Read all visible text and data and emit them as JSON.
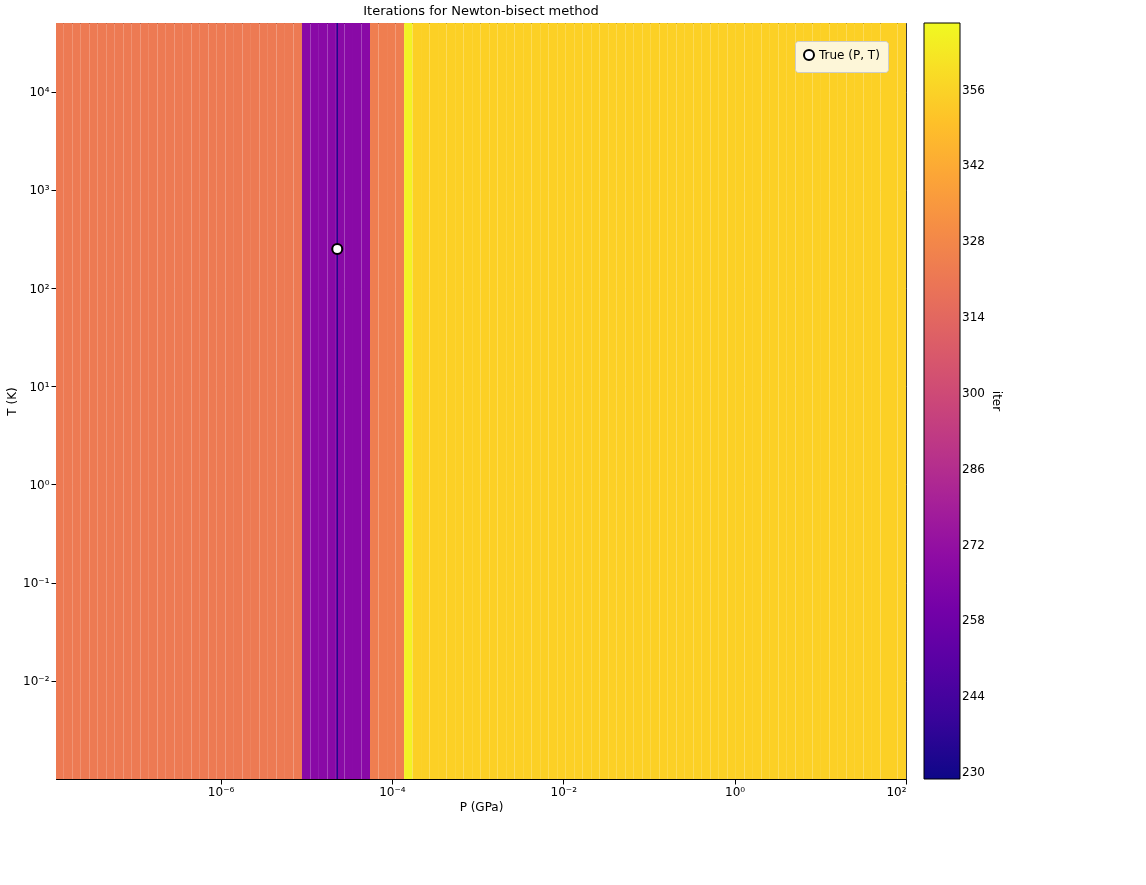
{
  "chart_data": {
    "type": "heatmap",
    "title": "Iterations for Newton-bisect method",
    "xlabel": "P (GPa)",
    "ylabel": "T (K)",
    "clabel": "iter",
    "x": [
      1.32e-08,
      1.66e-08,
      2.08e-08,
      2.62e-08,
      3.29e-08,
      4.13e-08,
      5.19e-08,
      6.53e-08,
      8.21e-08,
      1.03e-07,
      1.3e-07,
      1.63e-07,
      2.05e-07,
      2.57e-07,
      3.24e-07,
      4.07e-07,
      5.11e-07,
      6.42e-07,
      8.08e-07,
      1.01e-06,
      1.28e-06,
      1.6e-06,
      2.02e-06,
      2.53e-06,
      3.18e-06,
      4e-06,
      5.03e-06,
      6.32e-06,
      7.95e-06,
      9.99e-06,
      1.25e-05,
      1.58e-05,
      1.98e-05,
      2.49e-05,
      3.13e-05,
      3.94e-05,
      4.95e-05,
      6.22e-05,
      7.82e-05,
      9.83e-05,
      0.000124,
      0.000155,
      0.000195,
      0.000245,
      0.000308,
      0.000387,
      0.000487,
      0.000612,
      0.000769,
      0.000967,
      0.00122,
      0.00153,
      0.00192,
      0.00241,
      0.00303,
      0.00381,
      0.00479,
      0.00602,
      0.00757,
      0.00951,
      0.012,
      0.015,
      0.0189,
      0.0237,
      0.0298,
      0.0375,
      0.0472,
      0.0593,
      0.0745,
      0.0936,
      0.118,
      0.148,
      0.186,
      0.234,
      0.294,
      0.369,
      0.464,
      0.583,
      0.733,
      0.921,
      1.16,
      1.46,
      1.83,
      2.3,
      2.89,
      3.63,
      4.56,
      5.74,
      7.21,
      9.07,
      11.4,
      14.3,
      18.0,
      22.6,
      28.4,
      35.7,
      44.9,
      56.5,
      71.0,
      89.2
    ],
    "cells": [
      [
        322,
        322,
        322,
        322,
        322,
        322,
        322,
        322,
        322,
        322,
        322,
        322,
        322,
        322,
        322,
        322,
        322,
        322,
        322,
        322,
        322,
        322,
        322,
        322,
        322,
        322,
        322,
        322,
        322,
        268,
        268,
        268,
        268,
        268,
        268,
        268,
        268,
        324,
        324,
        324,
        324,
        366,
        355,
        355,
        355,
        355,
        355,
        355,
        355,
        355,
        355,
        355,
        355,
        355,
        355,
        355,
        355,
        355,
        355,
        355,
        355,
        355,
        355,
        355,
        355,
        355,
        355,
        355,
        355,
        355,
        355,
        355,
        355,
        355,
        355,
        355,
        355,
        355,
        355,
        355,
        355,
        355,
        355,
        355,
        355,
        355,
        355,
        355,
        355,
        355,
        355,
        355,
        355,
        355,
        355,
        355,
        355,
        355,
        355,
        355
      ]
    ],
    "xlim": [
      1.2e-08,
      100
    ],
    "ylim": [
      0.001,
      50000
    ],
    "log": "xy",
    "xticks": [
      {
        "value": 1e-06,
        "label": "10⁻⁶"
      },
      {
        "value": 0.0001,
        "label": "10⁻⁴"
      },
      {
        "value": 0.01,
        "label": "10⁻²"
      },
      {
        "value": 1,
        "label": "10⁰"
      },
      {
        "value": 100,
        "label": "10²"
      }
    ],
    "yticks": [
      {
        "value": 0.01,
        "label": "10⁻²"
      },
      {
        "value": 0.1,
        "label": "10⁻¹"
      },
      {
        "value": 1,
        "label": "10⁰"
      },
      {
        "value": 10,
        "label": "10¹"
      },
      {
        "value": 100,
        "label": "10²"
      },
      {
        "value": 1000,
        "label": "10³"
      },
      {
        "value": 10000,
        "label": "10⁴"
      }
    ],
    "clim": [
      228.7,
      368.3
    ],
    "cticks": [
      230,
      244,
      258,
      272,
      286,
      300,
      314,
      328,
      342,
      356
    ],
    "grid": true,
    "legend": "top right",
    "ref_lines": [
      {
        "axis": "x",
        "value": 2.3e-05,
        "color": "#0d0887"
      }
    ],
    "series": [
      {
        "type": "scatter",
        "name": "True (P, T)",
        "color": "#ffffff",
        "marker": "circle",
        "x": [
          2.3e-05
        ],
        "values": [
          250
        ]
      }
    ]
  }
}
